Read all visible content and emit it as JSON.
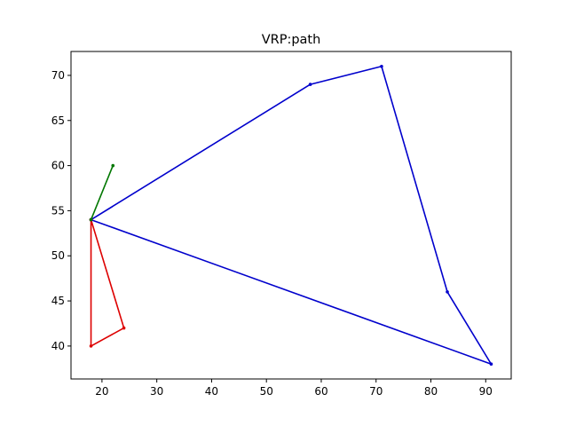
{
  "chart_data": {
    "type": "line",
    "title": "VRP:path",
    "xlabel": "",
    "ylabel": "",
    "xlim": [
      14.35,
      94.65
    ],
    "ylim": [
      36.35,
      72.65
    ],
    "grid": false,
    "legend": "none",
    "xticks": [
      20,
      30,
      40,
      50,
      60,
      70,
      80,
      90
    ],
    "yticks": [
      40,
      45,
      50,
      55,
      60,
      65,
      70
    ],
    "series": [
      {
        "color": "#0000cc",
        "x": [
          18,
          58,
          71,
          83,
          91,
          18
        ],
        "y": [
          54,
          69,
          71,
          46,
          38,
          54
        ]
      },
      {
        "color": "#dd0000",
        "x": [
          18,
          24,
          18,
          18
        ],
        "y": [
          54,
          42,
          40,
          54
        ]
      },
      {
        "color": "#007700",
        "x": [
          18,
          22
        ],
        "y": [
          54,
          60
        ]
      }
    ]
  }
}
